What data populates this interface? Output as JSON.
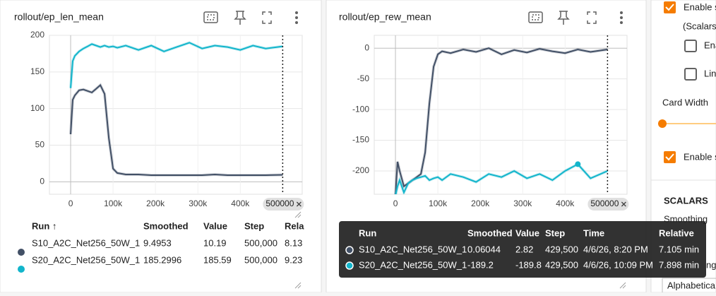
{
  "chart_data": [
    {
      "type": "line",
      "title": "rollout/ep_len_mean",
      "x": [
        0,
        5000,
        10000,
        20000,
        30000,
        40000,
        50000,
        60000,
        70000,
        80000,
        90000,
        100000,
        110000,
        130000,
        160000,
        190000,
        220000,
        250000,
        280000,
        310000,
        340000,
        370000,
        400000,
        430000,
        460000,
        500000
      ],
      "series": [
        {
          "name": "S10_A2C_Net256_50W_1",
          "color": "#425066",
          "values": [
            65,
            112,
            118,
            125,
            126,
            124,
            122,
            127,
            132,
            120,
            60,
            18,
            12,
            10,
            10,
            9,
            9,
            9,
            9,
            9,
            10,
            9,
            9,
            9,
            9,
            9.5
          ]
        },
        {
          "name": "S20_A2C_Net256_50W_1",
          "color": "#12b5cb",
          "values": [
            128,
            165,
            172,
            178,
            182,
            185,
            188,
            186,
            184,
            186,
            184,
            185,
            183,
            186,
            180,
            186,
            178,
            184,
            190,
            182,
            186,
            184,
            180,
            186,
            182,
            185
          ]
        }
      ],
      "xlim": [
        -50000,
        546000
      ],
      "xticks": [
        0,
        {
          "value": 100000,
          "label": "100k"
        },
        {
          "value": 200000,
          "label": "200k"
        },
        {
          "value": 300000,
          "label": "300k"
        },
        {
          "value": 400000,
          "label": "400k"
        }
      ],
      "ylim": [
        -17,
        200
      ],
      "yticks": [
        0,
        50,
        100,
        150,
        200
      ],
      "grid": true,
      "cursor_x": 500000
    },
    {
      "type": "line",
      "title": "rollout/ep_rew_mean",
      "x": [
        0,
        5000,
        10000,
        20000,
        30000,
        40000,
        50000,
        60000,
        70000,
        80000,
        90000,
        100000,
        110000,
        130000,
        160000,
        190000,
        220000,
        250000,
        280000,
        310000,
        340000,
        370000,
        400000,
        430000,
        460000,
        500000
      ],
      "series": [
        {
          "name": "S10_A2C_Net256_50W_1",
          "color": "#425066",
          "values": [
            -240,
            -185,
            -200,
            -225,
            -220,
            -215,
            -210,
            -205,
            -170,
            -90,
            -30,
            -10,
            -5,
            -8,
            -2,
            -6,
            0,
            -10,
            -3,
            -7,
            -1,
            -5,
            -8,
            -2,
            -6,
            -2
          ]
        },
        {
          "name": "S20_A2C_Net256_50W_1",
          "color": "#12b5cb",
          "values": [
            -240,
            -225,
            -215,
            -235,
            -220,
            -215,
            -212,
            -210,
            -208,
            -215,
            -212,
            -210,
            -215,
            -205,
            -210,
            -218,
            -205,
            -210,
            -200,
            -212,
            -205,
            -215,
            -200,
            -189,
            -212,
            -200
          ]
        }
      ],
      "xlim": [
        -50000,
        546000
      ],
      "xticks": [
        0,
        {
          "value": 100000,
          "label": "100k"
        },
        {
          "value": 200000,
          "label": "200k"
        },
        {
          "value": 300000,
          "label": "300k"
        },
        {
          "value": 400000,
          "label": "400k"
        }
      ],
      "ylim": [
        -238,
        21
      ],
      "yticks": [
        0,
        -50,
        -100,
        -150,
        -200
      ],
      "grid": true,
      "cursor_x": 500000
    }
  ],
  "table": {
    "columns": [
      "Run ↑",
      "Smoothed",
      "Value",
      "Step",
      "Rela"
    ],
    "rows": [
      [
        "9.4953",
        "10.19",
        "500,000",
        "8.13"
      ],
      [
        "185.2996",
        "185.59",
        "500,000",
        "9.23"
      ]
    ]
  },
  "tooltip": {
    "columns": [
      "Run",
      "Smoothed",
      "Value",
      "Step",
      "Time",
      "Relative"
    ],
    "rows": [
      [
        "0.06044",
        "2.82",
        "429,500",
        "4/6/26, 8:20 PM",
        "7.105 min"
      ],
      [
        "-189.2",
        "-189.8",
        "429,500",
        "4/6/26, 10:09 PM",
        "7.898 min"
      ]
    ]
  },
  "sidebar": {
    "enable_first": "Enable s",
    "scalars_note": "(Scalars",
    "option_first": "Ena",
    "option_second": "Lin",
    "card_width": "Card Width",
    "enable_second": "Enable s",
    "section": "SCALARS",
    "smoothing": "Smoothing",
    "sort_partial": "ng",
    "sort_value": "Alphabetica"
  }
}
